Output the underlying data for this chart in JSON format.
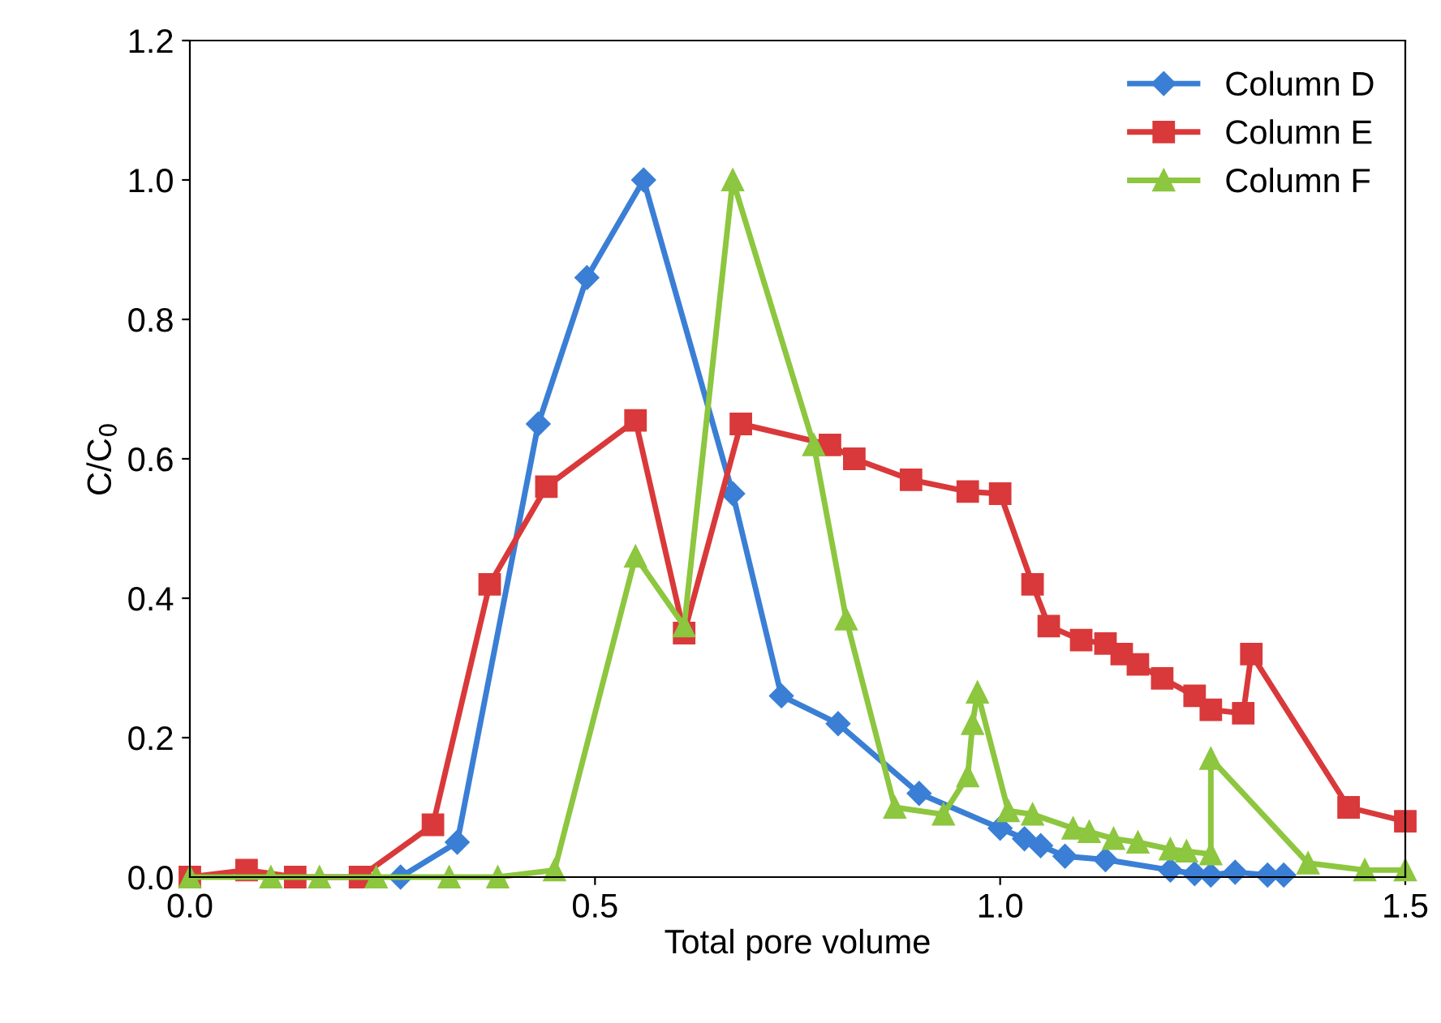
{
  "chart_data": {
    "type": "line",
    "xlabel": "Total pore volume",
    "ylabel": "C/C$_{0}$",
    "xlim": [
      0,
      1.5
    ],
    "ylim": [
      0,
      1.2
    ],
    "xticks": [
      {
        "value": 0,
        "label": "0.0"
      },
      {
        "value": 0.5,
        "label": "0.5"
      },
      {
        "value": 1.0,
        "label": "1.0"
      },
      {
        "value": 1.5,
        "label": "1.5"
      }
    ],
    "yticks": [
      {
        "value": 0,
        "label": "0.0"
      },
      {
        "value": 0.2,
        "label": "0.2"
      },
      {
        "value": 0.4,
        "label": "0.4"
      },
      {
        "value": 0.6,
        "label": "0.6"
      },
      {
        "value": 0.8,
        "label": "0.8"
      },
      {
        "value": 1.0,
        "label": "1.0"
      },
      {
        "value": 1.2,
        "label": "1.2"
      }
    ],
    "grid": false,
    "legend": "top right",
    "line_style": "solid",
    "series": [
      {
        "name": "Column D",
        "color": "#3a7fd5",
        "marker": "diamond",
        "x": [
          0.26,
          0.33,
          0.43,
          0.49,
          0.56,
          0.67,
          0.73,
          0.8,
          0.9,
          1.0,
          1.03,
          1.05,
          1.08,
          1.13,
          1.21,
          1.24,
          1.26,
          1.29,
          1.33,
          1.35
        ],
        "values": [
          0,
          0.05,
          0.65,
          0.86,
          1.0,
          0.55,
          0.26,
          0.22,
          0.12,
          0.07,
          0.055,
          0.045,
          0.03,
          0.025,
          0.01,
          0.005,
          0.003,
          0.007,
          0.003,
          0.003
        ]
      },
      {
        "name": "Column E",
        "color": "#d9393a",
        "marker": "square",
        "x": [
          0,
          0.07,
          0.13,
          0.21,
          0.3,
          0.37,
          0.44,
          0.55,
          0.61,
          0.68,
          0.79,
          0.82,
          0.89,
          0.96,
          1.0,
          1.04,
          1.06,
          1.1,
          1.13,
          1.15,
          1.17,
          1.2,
          1.24,
          1.26,
          1.3,
          1.31,
          1.43,
          1.5
        ],
        "values": [
          0,
          0.01,
          0,
          0,
          0.075,
          0.42,
          0.56,
          0.655,
          0.35,
          0.65,
          0.62,
          0.6,
          0.57,
          0.553,
          0.55,
          0.42,
          0.36,
          0.34,
          0.335,
          0.32,
          0.305,
          0.285,
          0.26,
          0.24,
          0.235,
          0.32,
          0.1,
          0.08
        ]
      },
      {
        "name": "Column F",
        "color": "#8dc63f",
        "marker": "triangle",
        "x": [
          0,
          0.1,
          0.16,
          0.23,
          0.32,
          0.38,
          0.45,
          0.55,
          0.61,
          0.67,
          0.77,
          0.81,
          0.87,
          0.93,
          0.96,
          0.966,
          0.972,
          1.01,
          1.04,
          1.09,
          1.11,
          1.14,
          1.17,
          1.21,
          1.23,
          1.26,
          1.26,
          1.38,
          1.45,
          1.5
        ],
        "values": [
          0,
          0,
          0,
          0,
          0,
          0,
          0.01,
          0.46,
          0.36,
          1.0,
          0.62,
          0.37,
          0.1,
          0.09,
          0.145,
          0.22,
          0.265,
          0.095,
          0.09,
          0.07,
          0.065,
          0.055,
          0.05,
          0.04,
          0.037,
          0.033,
          0.17,
          0.02,
          0.01,
          0.01
        ]
      }
    ]
  }
}
